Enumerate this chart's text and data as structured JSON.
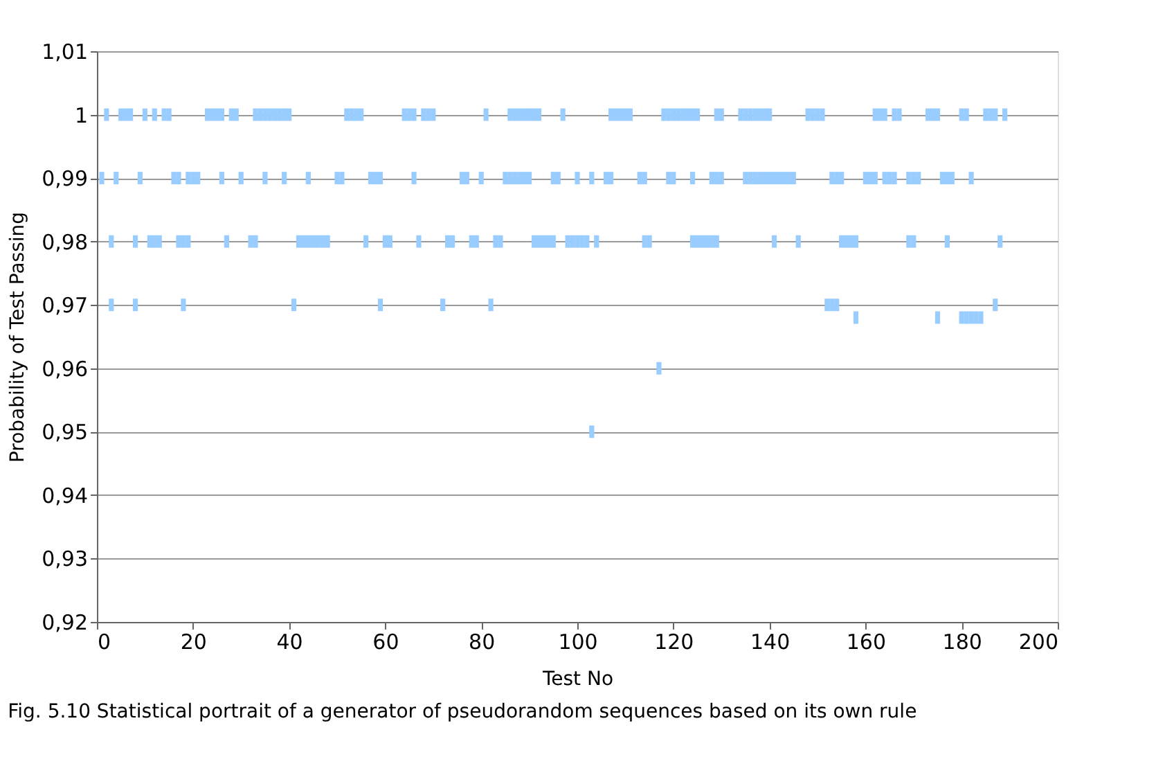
{
  "chart_data": {
    "type": "scatter",
    "xlabel": "Test No",
    "ylabel": "Probability of Test Passing",
    "annotations": [
      "Fig. 5.10 Statistical portrait of a generator of pseudorandom sequences based on its own rule"
    ],
    "series": [
      {
        "color": "#99ccff",
        "x": [
          2,
          5,
          6,
          7,
          10,
          12,
          14,
          15,
          23,
          24,
          25,
          26,
          28,
          29,
          33,
          34,
          35,
          36,
          37,
          38,
          39,
          40,
          52,
          53,
          54,
          55,
          64,
          65,
          66,
          68,
          69,
          70,
          81,
          86,
          87,
          88,
          89,
          90,
          91,
          92,
          97,
          107,
          108,
          109,
          110,
          111,
          118,
          119,
          120,
          121,
          122,
          123,
          124,
          125,
          129,
          130,
          134,
          135,
          136,
          137,
          138,
          139,
          140,
          148,
          149,
          150,
          151,
          162,
          163,
          164,
          166,
          167,
          173,
          174,
          175,
          180,
          181,
          185,
          186,
          187,
          189
        ],
        "values": [
          1,
          1,
          1,
          1,
          1,
          1,
          1,
          1,
          1,
          1,
          1,
          1,
          1,
          1,
          1,
          1,
          1,
          1,
          1,
          1,
          1,
          1,
          1,
          1,
          1,
          1,
          1,
          1,
          1,
          1,
          1,
          1,
          1,
          1,
          1,
          1,
          1,
          1,
          1,
          1,
          1,
          1,
          1,
          1,
          1,
          1,
          1,
          1,
          1,
          1,
          1,
          1,
          1,
          1,
          1,
          1,
          1,
          1,
          1,
          1,
          1,
          1,
          1,
          1,
          1,
          1,
          1,
          1,
          1,
          1,
          1,
          1,
          1,
          1,
          1,
          1,
          1,
          1,
          1,
          1,
          1
        ]
      },
      {
        "color": "#99ccff",
        "x": [
          1,
          4,
          9,
          16,
          17,
          19,
          20,
          21,
          26,
          30,
          35,
          39,
          44,
          50,
          51,
          57,
          58,
          59,
          66,
          76,
          77,
          80,
          85,
          86,
          87,
          88,
          89,
          90,
          95,
          96,
          100,
          103,
          106,
          107,
          113,
          114,
          119,
          120,
          124,
          128,
          129,
          130,
          135,
          136,
          137,
          138,
          139,
          140,
          141,
          142,
          143,
          144,
          145,
          153,
          154,
          155,
          160,
          161,
          162,
          164,
          165,
          166,
          169,
          170,
          171,
          176,
          177,
          178,
          182
        ],
        "values": [
          0.99,
          0.99,
          0.99,
          0.99,
          0.99,
          0.99,
          0.99,
          0.99,
          0.99,
          0.99,
          0.99,
          0.99,
          0.99,
          0.99,
          0.99,
          0.99,
          0.99,
          0.99,
          0.99,
          0.99,
          0.99,
          0.99,
          0.99,
          0.99,
          0.99,
          0.99,
          0.99,
          0.99,
          0.99,
          0.99,
          0.99,
          0.99,
          0.99,
          0.99,
          0.99,
          0.99,
          0.99,
          0.99,
          0.99,
          0.99,
          0.99,
          0.99,
          0.99,
          0.99,
          0.99,
          0.99,
          0.99,
          0.99,
          0.99,
          0.99,
          0.99,
          0.99,
          0.99,
          0.99,
          0.99,
          0.99,
          0.99,
          0.99,
          0.99,
          0.99,
          0.99,
          0.99,
          0.99,
          0.99,
          0.99,
          0.99,
          0.99,
          0.99,
          0.99
        ]
      },
      {
        "color": "#99ccff",
        "x": [
          3,
          8,
          11,
          12,
          13,
          17,
          18,
          19,
          27,
          32,
          33,
          42,
          43,
          44,
          45,
          46,
          47,
          48,
          56,
          60,
          61,
          67,
          73,
          74,
          78,
          79,
          83,
          84,
          91,
          92,
          93,
          94,
          95,
          98,
          99,
          100,
          101,
          102,
          104,
          114,
          115,
          124,
          125,
          126,
          127,
          128,
          129,
          141,
          146,
          155,
          156,
          157,
          158,
          169,
          170,
          177,
          188
        ],
        "values": [
          0.98,
          0.98,
          0.98,
          0.98,
          0.98,
          0.98,
          0.98,
          0.98,
          0.98,
          0.98,
          0.98,
          0.98,
          0.98,
          0.98,
          0.98,
          0.98,
          0.98,
          0.98,
          0.98,
          0.98,
          0.98,
          0.98,
          0.98,
          0.98,
          0.98,
          0.98,
          0.98,
          0.98,
          0.98,
          0.98,
          0.98,
          0.98,
          0.98,
          0.98,
          0.98,
          0.98,
          0.98,
          0.98,
          0.98,
          0.98,
          0.98,
          0.98,
          0.98,
          0.98,
          0.98,
          0.98,
          0.98,
          0.98,
          0.98,
          0.98,
          0.98,
          0.98,
          0.98,
          0.98,
          0.98,
          0.98,
          0.98
        ]
      },
      {
        "color": "#99ccff",
        "x": [
          3,
          8,
          18,
          41,
          59,
          72,
          82,
          152,
          153,
          154,
          187,
          158,
          175,
          180,
          181,
          182,
          183,
          184,
          117,
          103
        ],
        "values": [
          0.97,
          0.97,
          0.97,
          0.97,
          0.97,
          0.97,
          0.97,
          0.97,
          0.97,
          0.97,
          0.97,
          0.968,
          0.968,
          0.968,
          0.968,
          0.968,
          0.968,
          0.968,
          0.96,
          0.95
        ]
      }
    ],
    "marker": "square",
    "xlim": [
      0,
      200
    ],
    "xticks": [
      0,
      20,
      40,
      60,
      80,
      100,
      120,
      140,
      160,
      180,
      200
    ],
    "ylim": [
      0.92,
      1.01
    ],
    "yticks": [
      {
        "value": 0.92,
        "label": "0,92"
      },
      {
        "value": 0.93,
        "label": "0,93"
      },
      {
        "value": 0.94,
        "label": "0,94"
      },
      {
        "value": 0.95,
        "label": "0,95"
      },
      {
        "value": 0.96,
        "label": "0,96"
      },
      {
        "value": 0.97,
        "label": "0,97"
      },
      {
        "value": 0.98,
        "label": "0,98"
      },
      {
        "value": 0.99,
        "label": "0,99"
      },
      1,
      {
        "value": 1.01,
        "label": "1,01"
      }
    ],
    "grid": "y"
  }
}
